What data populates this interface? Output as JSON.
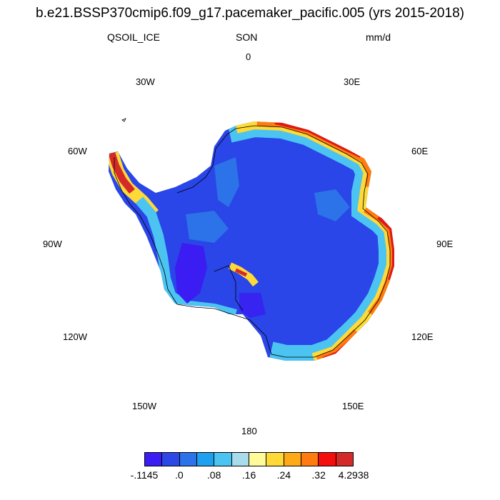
{
  "title": "b.e21.BSSP370cmip6.f09_g17.pacemaker_pacific.005 (yrs 2015-2018)",
  "variable": "QSOIL_ICE",
  "season": "SON",
  "units": "mm/d",
  "longitude_labels": {
    "lon_0": "0",
    "lon_30e": "30E",
    "lon_60e": "60E",
    "lon_90e": "90E",
    "lon_120e": "120E",
    "lon_150e": "150E",
    "lon_180": "180",
    "lon_150w": "150W",
    "lon_120w": "120W",
    "lon_90w": "90W",
    "lon_60w": "60W",
    "lon_30w": "30W"
  },
  "colorbar": {
    "colors": [
      "#3b1cf2",
      "#2b48e6",
      "#2c72e8",
      "#1ea0f0",
      "#4cc4f2",
      "#a8dcec",
      "#fffa9a",
      "#fed938",
      "#feaa18",
      "#ff7b10",
      "#f40e0e",
      "#d42a2a"
    ],
    "labels": [
      "-.1145",
      ".0",
      ".08",
      ".16",
      ".24",
      ".32",
      "4.2938"
    ]
  },
  "colors": {
    "ice_base": "#2a45e8",
    "ice_low": "#3b1cf2",
    "coastline": "#000000"
  }
}
